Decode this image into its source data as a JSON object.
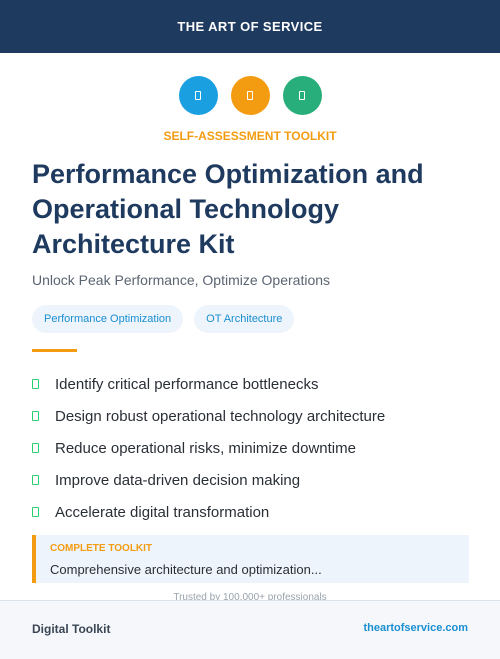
{
  "header": {
    "brand": "THE ART OF SERVICE"
  },
  "icons": [
    {
      "name": "circle-icon-blue",
      "color": "#1a9fe0"
    },
    {
      "name": "circle-icon-orange",
      "color": "#f39c12"
    },
    {
      "name": "circle-icon-green",
      "color": "#27ae7a"
    }
  ],
  "kicker": "SELF-ASSESSMENT TOOLKIT",
  "title_lines": [
    "Performance Optimization and",
    "Operational Technology",
    "Architecture Kit"
  ],
  "subtitle": "Unlock Peak Performance, Optimize Operations",
  "tags": [
    "Performance Optimization",
    "OT Architecture"
  ],
  "features": [
    "Identify critical performance bottlenecks",
    "Design robust operational technology architecture",
    "Reduce operational risks, minimize downtime",
    "Improve data-driven decision making",
    "Accelerate digital transformation"
  ],
  "callout": {
    "label": "COMPLETE TOOLKIT",
    "text": "Comprehensive architecture and optimization..."
  },
  "trusted": "Trusted by 100,000+ professionals",
  "footer": {
    "left": "Digital Toolkit",
    "right": "theartofservice.com"
  },
  "colors": {
    "navy": "#1f3a5f",
    "orange": "#f39c12",
    "blue": "#1a8fd1",
    "green": "#2ecc71"
  }
}
